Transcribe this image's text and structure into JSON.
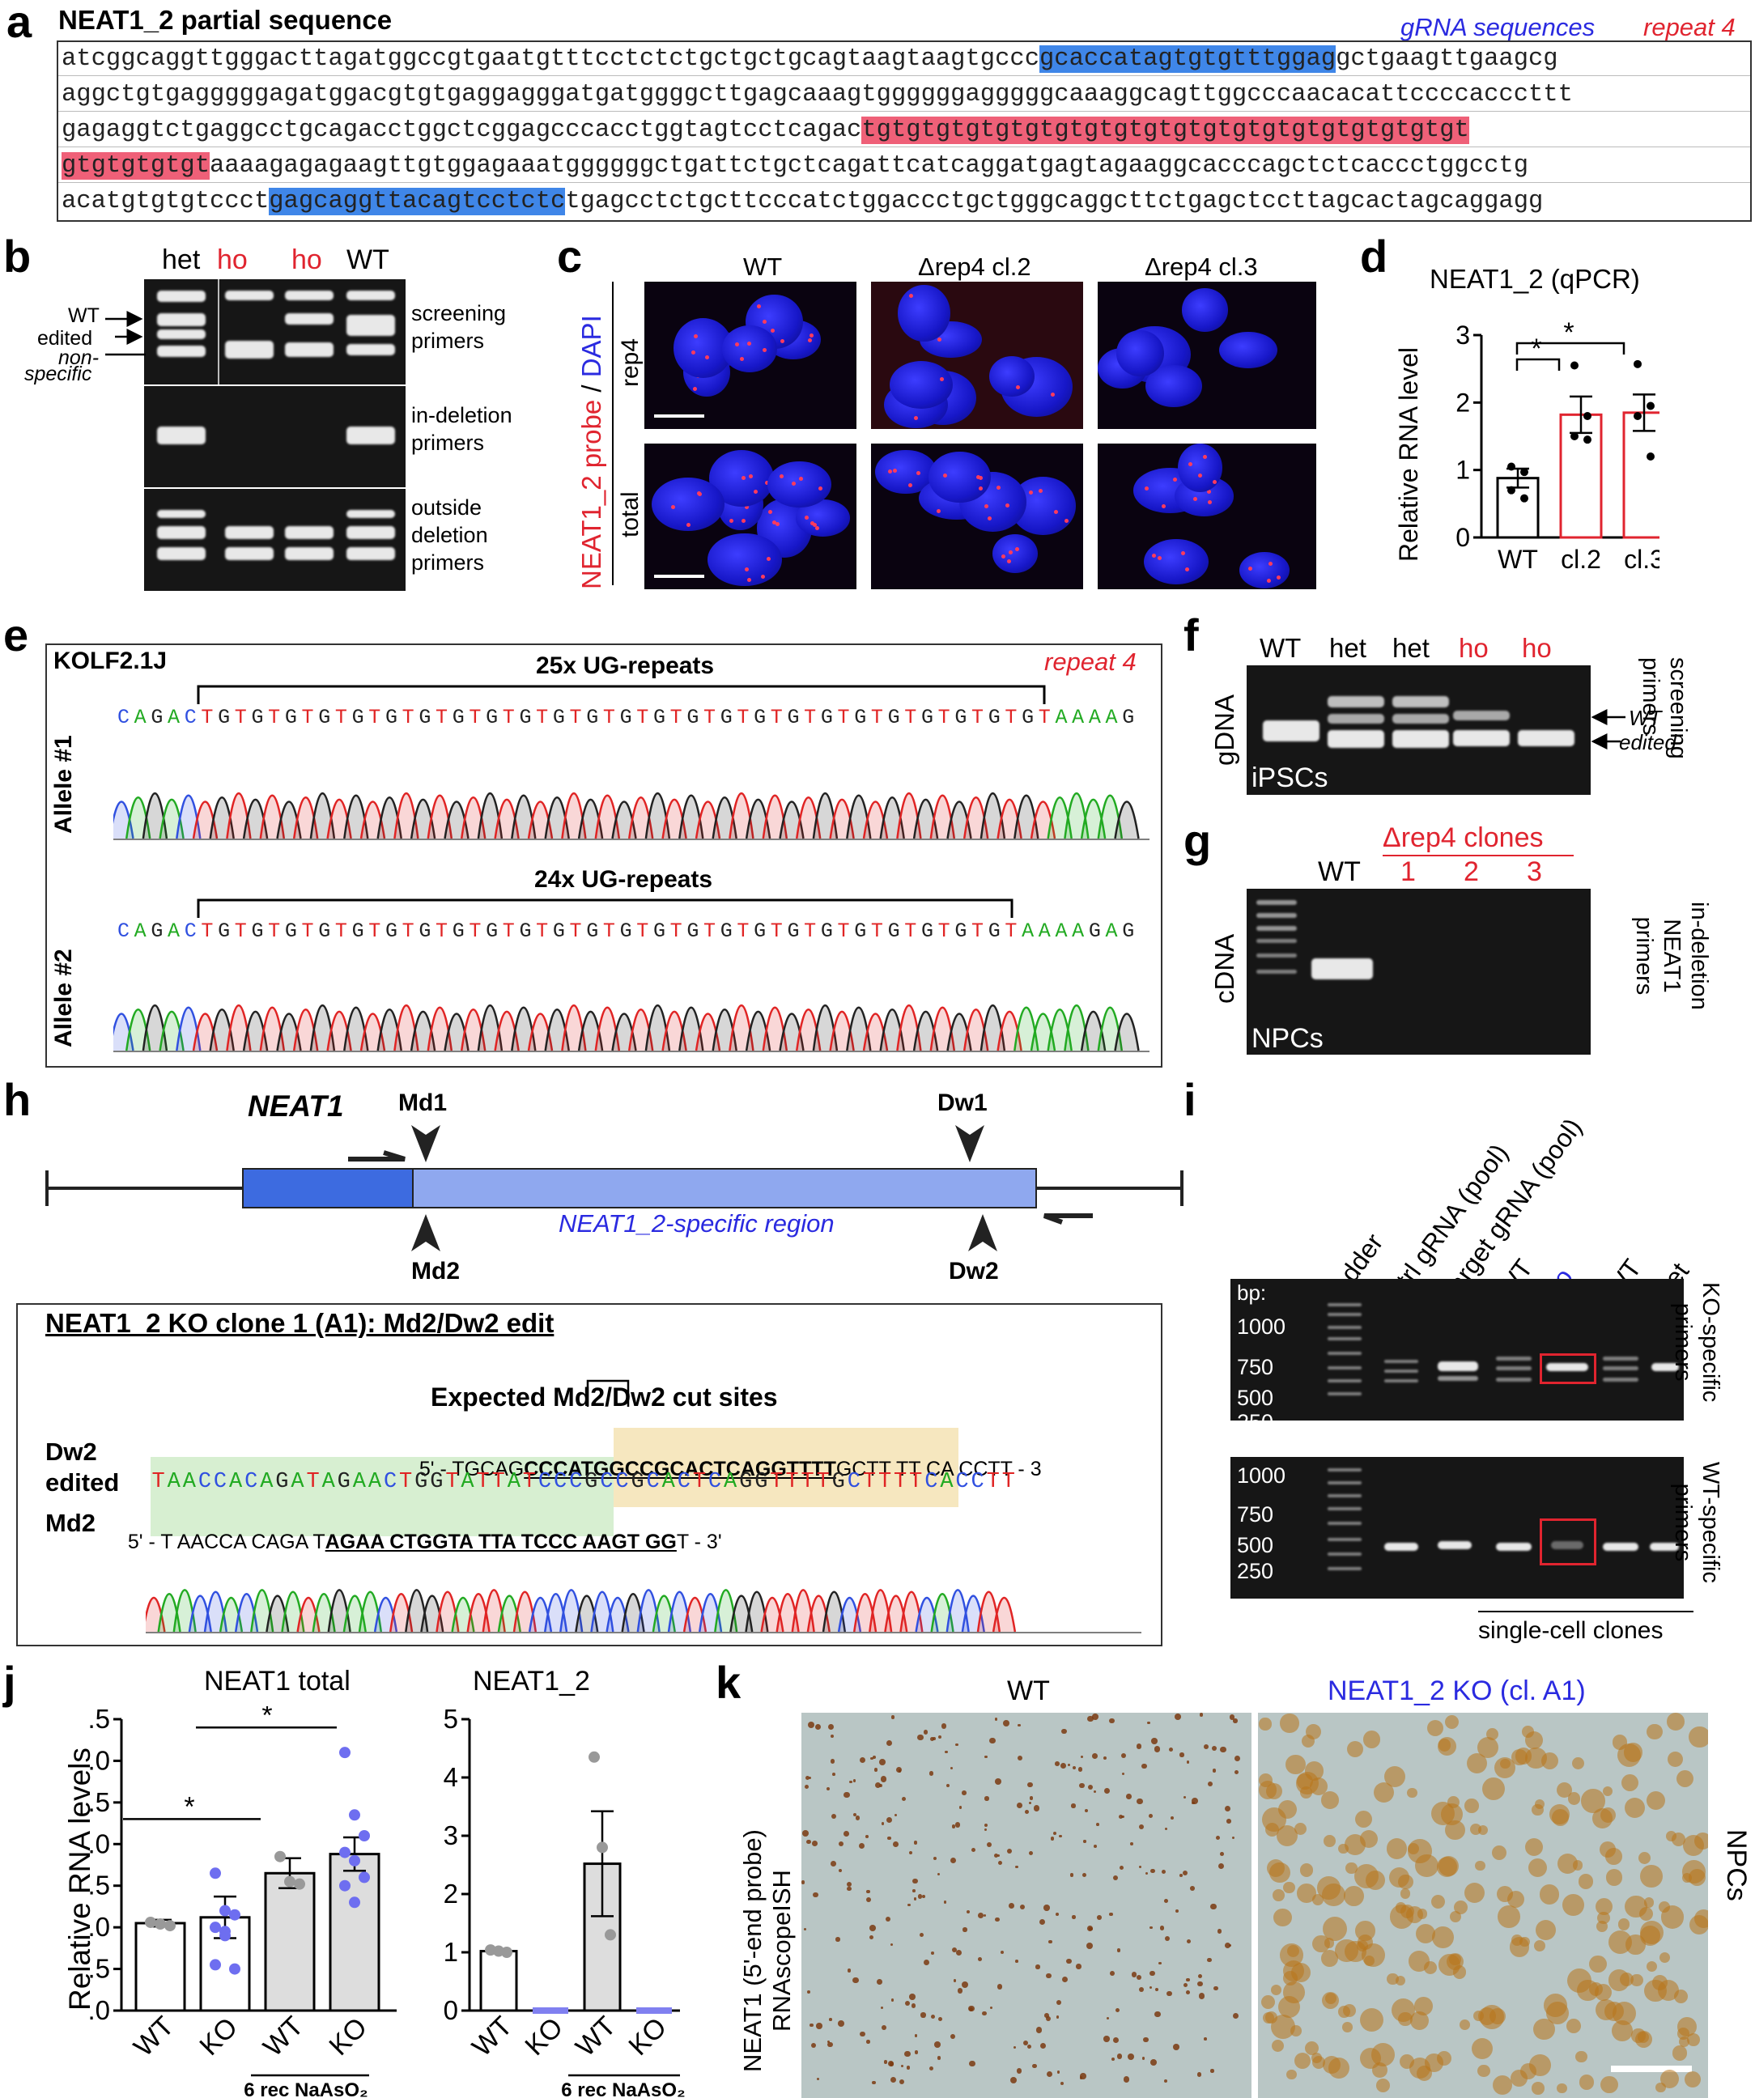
{
  "panels": {
    "a": {
      "letter": "a",
      "title": "NEAT1_2 partial sequence",
      "legend_grna": "gRNA sequences",
      "legend_repeat": "repeat 4",
      "seq_lines": [
        {
          "pre": "atcggcaggttgggacttagatggccgtgaatgtttcctctctgctgctgcagtaagtaagtgccc",
          "blue": "gcaccatagtgtgtttggag",
          "post": "gctgaagttgaagcg"
        },
        {
          "pre": "aggctgtgagggggagatggacgtgtgaggagggatgatggggcttgagcaaagtggggggagggggcaaaggcagttggcccaacacattccccacccttt"
        },
        {
          "pre": "gagaggtctgaggcctgcagacctggctcggagcccacctggtagtcctcagac",
          "red": "tgtgtgtgtgtgtgtgtgtgtgtgtgtgtgtgtgtgtgtgt"
        },
        {
          "red": "gtgtgtgtgt",
          "post": "aaaagagagaagttgtggagaaatggggggctgattctgctcagattcatcaggatgagtagaaggcacccagctctcaccctggcctg"
        },
        {
          "pre": "acatgtgtgtccct",
          "blue": "gagcaggttacagtcctctc",
          "post": "tgagcctctgcttcccatctggaccctgctgggcaggcttctgagctccttagcactagcaggagg"
        }
      ]
    },
    "b": {
      "letter": "b",
      "lanes": [
        "het",
        "ho",
        "ho",
        "WT"
      ],
      "arrow_labels": [
        "WT",
        "edited",
        "non-",
        "specific"
      ],
      "gel_labels": [
        "screening\nprimers",
        "in-deletion\nprimers",
        "outside\ndeletion\nprimers"
      ]
    },
    "c": {
      "letter": "c",
      "cols": [
        "WT",
        "Δrep4 cl.2",
        "Δrep4 cl.3"
      ],
      "rows": [
        "rep4",
        "total"
      ],
      "probe": "NEAT1_2 probe",
      "slash": " / ",
      "dapi": "DAPI"
    },
    "d": {
      "letter": "d",
      "title": "NEAT1_2 (qPCR)",
      "ylabel": "Relative RNA level",
      "star": "*"
    },
    "e": {
      "letter": "e",
      "strain": "KOLF2.1J",
      "repeat": "repeat 4",
      "allele1": "Allele #1",
      "allele2": "Allele #2",
      "count1": "25x UG-repeats",
      "count2": "24x UG-repeats",
      "seq1": "CAGACTGTGTGTGTGTGTGTGTGTGTGTGTGTGTGTGTGTGTGTGTGTGTGTGTGTAAAAG",
      "seq2": "CAGACTGTGTGTGTGTGTGTGTGTGTGTGTGTGTGTGTGTGTGTGTGTGTGTGTAAAAGAG"
    },
    "f": {
      "letter": "f",
      "lanes": [
        "WT",
        "het",
        "het",
        "ho",
        "ho"
      ],
      "ylabel": "gDNA",
      "inner": "iPSCs",
      "wt": "WT",
      "edited": "edited",
      "side": "screening\nprimers"
    },
    "g": {
      "letter": "g",
      "header": "Δrep4 clones",
      "lanes": [
        "WT",
        "1",
        "2",
        "3"
      ],
      "ylabel": "cDNA",
      "inner": "NPCs",
      "side": "in-deletion\nNEAT1\nprimers"
    },
    "h": {
      "letter": "h",
      "gene": "NEAT1",
      "region": "NEAT1_2-specific region",
      "md1": "Md1",
      "md2": "Md2",
      "dw1": "Dw1",
      "dw2": "Dw2",
      "box_title": "NEAT1_2 KO clone 1 (A1): Md2/Dw2 edit",
      "cut_title": "Expected Md2/Dw2 cut sites",
      "dw2_label": "Dw2",
      "edited_label": "edited",
      "md2_label": "Md2",
      "dw2_seq_a": "5' - TGCAG",
      "dw2_seq_b": "CCCATGGCCGCACTCAGGTTTT",
      "dw2_seq_c": "GCTT TT CA CCTT - 3",
      "edited_seq": "TAACCACAGATAGAACTGGTATTATCCCGCCGCACTCAGGTTTTGCTTTTCACCTT",
      "md2_seq_a": "5' - T AACCA CAGA T",
      "md2_seq_b": "AGAA CTGGTA TTA TCCC AAGT GG",
      "md2_seq_c": "T - 3'"
    },
    "i": {
      "letter": "i",
      "lanes": [
        "ladder",
        "ctrl gRNA (pool)",
        "target gRNA (pool)",
        "WT",
        "ho",
        "WT",
        "het"
      ],
      "bp": "bp:",
      "ladder_ticks": [
        "1000",
        "750",
        "500",
        "250"
      ],
      "top_side": "KO-specific\nprimers",
      "bottom_side": "WT-specific\nprimers",
      "footer": "single-cell clones"
    },
    "j": {
      "letter": "j",
      "title1": "NEAT1 total",
      "title2": "NEAT1_2",
      "ylabel": "Relative RNA levels",
      "xcats": [
        "WT",
        "KO",
        "WT",
        "KO"
      ],
      "treat": "6 rec NaAsO₂",
      "star": "*"
    },
    "k": {
      "letter": "k",
      "wt": "WT",
      "ko": "NEAT1_2 KO (cl. A1)",
      "ylabel": "NEAT1 (5'-end probe)\nRNAscopeISH",
      "side": "NPCs"
    }
  },
  "chart_data": [
    {
      "type": "bar",
      "panel": "d",
      "title": "NEAT1_2 (qPCR)",
      "ylabel": "Relative RNA level",
      "categories": [
        "WT",
        "cl.2",
        "cl.3"
      ],
      "values": [
        0.88,
        1.82,
        1.85
      ],
      "errors": [
        0.14,
        0.27,
        0.27
      ],
      "points": [
        [
          1.05,
          0.97,
          0.7,
          0.58
        ],
        [
          2.55,
          1.8,
          1.5,
          1.45
        ],
        [
          2.57,
          1.95,
          1.8,
          1.2
        ]
      ],
      "ylim": [
        0,
        3
      ],
      "yticks": [
        0,
        1,
        2,
        3
      ]
    },
    {
      "type": "bar",
      "panel": "j-left",
      "title": "NEAT1 total",
      "ylabel": "Relative RNA levels",
      "categories": [
        "WT",
        "KO",
        "WT",
        "KO"
      ],
      "values": [
        1.05,
        1.12,
        1.65,
        1.88
      ],
      "errors": [
        0.04,
        0.25,
        0.18,
        0.2
      ],
      "ylim": [
        0,
        3.5
      ],
      "yticks": [
        0,
        0.5,
        1.0,
        1.5,
        2.0,
        2.5,
        3.0,
        3.5
      ]
    },
    {
      "type": "bar",
      "panel": "j-right",
      "title": "NEAT1_2",
      "categories": [
        "WT",
        "KO",
        "WT",
        "KO"
      ],
      "values": [
        1.02,
        0.0,
        2.52,
        0.0
      ],
      "errors": [
        0.03,
        0.0,
        0.9,
        0.0
      ],
      "ylim": [
        0,
        5
      ],
      "yticks": [
        0,
        1,
        2,
        3,
        4,
        5
      ]
    }
  ]
}
